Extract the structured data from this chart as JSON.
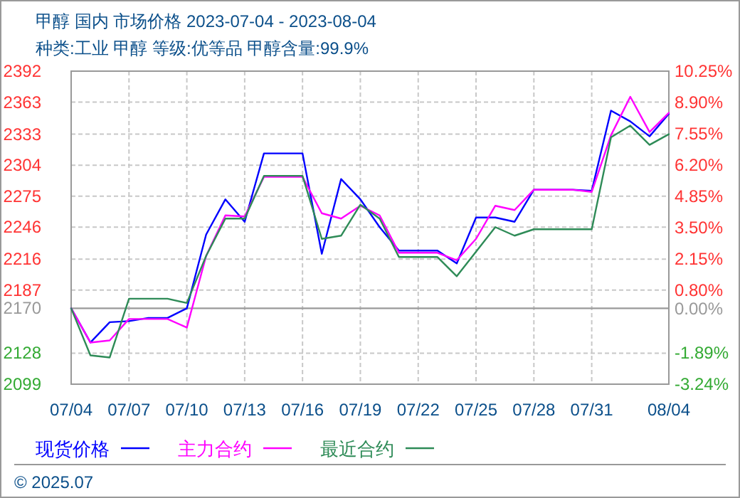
{
  "chart_data": {
    "type": "line",
    "title": "甲醇 国内 市场价格 2023-07-04 - 2023-08-04",
    "subtitle": "种类:工业 甲醇 等级:优等品 甲醇含量:99.9%",
    "annotations": [
      "© 2025.07"
    ],
    "x": [
      "2023-07-04",
      "2023-07-05",
      "2023-07-06",
      "2023-07-07",
      "2023-07-08",
      "2023-07-09",
      "2023-07-10",
      "2023-07-11",
      "2023-07-12",
      "2023-07-13",
      "2023-07-14",
      "2023-07-15",
      "2023-07-16",
      "2023-07-17",
      "2023-07-18",
      "2023-07-19",
      "2023-07-20",
      "2023-07-21",
      "2023-07-22",
      "2023-07-23",
      "2023-07-24",
      "2023-07-25",
      "2023-07-26",
      "2023-07-27",
      "2023-07-28",
      "2023-07-29",
      "2023-07-30",
      "2023-07-31",
      "2023-08-01",
      "2023-08-02",
      "2023-08-03",
      "2023-08-04"
    ],
    "series": [
      {
        "name": "现货价格",
        "color": "#0000ff",
        "values": [
          2170,
          2138,
          2157,
          2158,
          2161,
          2161,
          2170,
          2239,
          2272,
          2251,
          2315,
          2315,
          2315,
          2221,
          2291,
          2272,
          2246,
          2224,
          2224,
          2224,
          2212,
          2255,
          2255,
          2251,
          2281,
          2281,
          2281,
          2280,
          2355,
          2345,
          2331,
          2352
        ]
      },
      {
        "name": "主力合约",
        "color": "#ff00ff",
        "values": [
          2170,
          2138,
          2140,
          2160,
          2160,
          2160,
          2152,
          2219,
          2257,
          2256,
          2293,
          2293,
          2293,
          2259,
          2254,
          2266,
          2257,
          2222,
          2222,
          2222,
          2215,
          2235,
          2266,
          2262,
          2281,
          2281,
          2281,
          2279,
          2332,
          2368,
          2335,
          2353
        ]
      },
      {
        "name": "最近合约",
        "color": "#2e8b57",
        "values": [
          2170,
          2126,
          2124,
          2179,
          2179,
          2179,
          2175,
          2219,
          2254,
          2254,
          2294,
          2294,
          2294,
          2235,
          2238,
          2267,
          2254,
          2218,
          2218,
          2218,
          2200,
          2223,
          2246,
          2238,
          2244,
          2244,
          2244,
          2244,
          2330,
          2341,
          2323,
          2333
        ]
      }
    ],
    "xlim": [
      "2023-07-04",
      "2023-08-04"
    ],
    "xticks": [
      {
        "value": "2023-07-04",
        "label": "07/04"
      },
      {
        "value": "2023-07-07",
        "label": "07/07"
      },
      {
        "value": "2023-07-10",
        "label": "07/10"
      },
      {
        "value": "2023-07-13",
        "label": "07/13"
      },
      {
        "value": "2023-07-16",
        "label": "07/16"
      },
      {
        "value": "2023-07-19",
        "label": "07/19"
      },
      {
        "value": "2023-07-22",
        "label": "07/22"
      },
      {
        "value": "2023-07-25",
        "label": "07/25"
      },
      {
        "value": "2023-07-28",
        "label": "07/28"
      },
      {
        "value": "2023-07-31",
        "label": "07/31"
      },
      {
        "value": "2023-08-04",
        "label": "08/04"
      }
    ],
    "ylim": [
      2099,
      2392
    ],
    "yticks": [
      2099,
      2128,
      2170,
      2187,
      2216,
      2246,
      2275,
      2304,
      2333,
      2363,
      2392
    ],
    "y2lim": [
      -3.24,
      10.25
    ],
    "y2ticks": [
      {
        "value": -3.24,
        "label": "-3.24%"
      },
      {
        "value": -1.89,
        "label": "-1.89%"
      },
      {
        "value": 0,
        "label": "0.00%"
      },
      {
        "value": 0.8,
        "label": "0.80%"
      },
      {
        "value": 2.15,
        "label": "2.15%"
      },
      {
        "value": 3.5,
        "label": "3.50%"
      },
      {
        "value": 4.85,
        "label": "4.85%"
      },
      {
        "value": 6.2,
        "label": "6.20%"
      },
      {
        "value": 7.55,
        "label": "7.55%"
      },
      {
        "value": 8.9,
        "label": "8.90%"
      },
      {
        "value": 10.25,
        "label": "10.25%"
      }
    ],
    "ref_lines": [
      {
        "axis": "y",
        "value": 2170,
        "color": "#999999"
      }
    ],
    "grid": true,
    "legend": "bottom",
    "marker": "none",
    "line_style": "solid"
  }
}
